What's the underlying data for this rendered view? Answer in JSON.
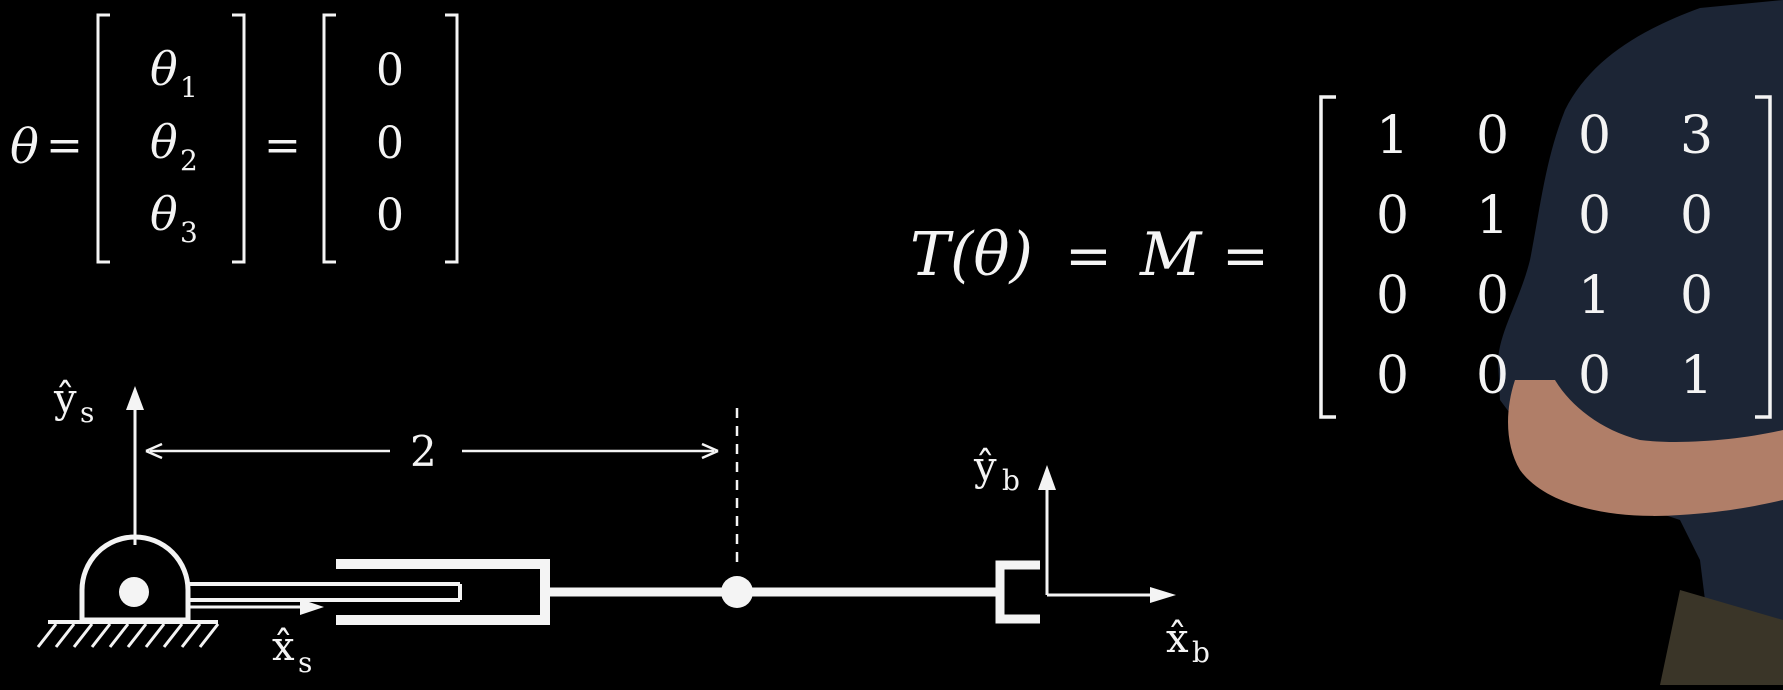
{
  "theta_equation": {
    "lhs": "θ",
    "equals": "=",
    "entries": [
      {
        "symbol": "θ",
        "sub": "1"
      },
      {
        "symbol": "θ",
        "sub": "2"
      },
      {
        "symbol": "θ",
        "sub": "3"
      }
    ],
    "values": [
      "0",
      "0",
      "0"
    ]
  },
  "transform_equation": {
    "lhs": "T(θ)",
    "equals_1": "=",
    "symbol": "M",
    "equals_2": "=",
    "matrix": [
      [
        "1",
        "0",
        "0",
        "3"
      ],
      [
        "0",
        "1",
        "0",
        "0"
      ],
      [
        "0",
        "0",
        "1",
        "0"
      ],
      [
        "0",
        "0",
        "0",
        "1"
      ]
    ]
  },
  "diagram": {
    "dimension_label": "2",
    "ys_hat": "ŷ",
    "ys_sub": "s",
    "xs_hat": "x̂",
    "xs_sub": "s",
    "yb_hat": "ŷ",
    "yb_sub": "b",
    "xb_hat": "x̂",
    "xb_sub": "b"
  },
  "colors": {
    "background": "#000000",
    "ink": "#f4f4f4",
    "presenter_shirt": "#1c2535",
    "presenter_skin": "#b07e68"
  }
}
